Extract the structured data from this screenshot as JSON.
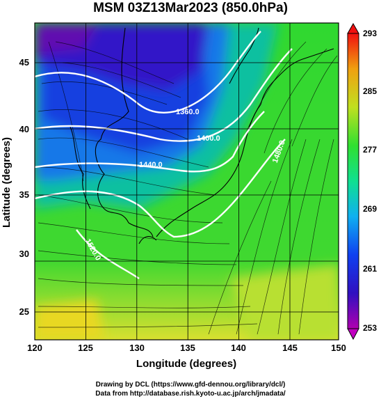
{
  "title": "MSM 03Z13Mar2023 (850.0hPa)",
  "x_axis": {
    "label": "Longitude (degrees)",
    "ticks": [
      "120",
      "125",
      "130",
      "135",
      "140",
      "145",
      "150"
    ]
  },
  "y_axis": {
    "label": "Latitude  (degrees)",
    "ticks": [
      "25",
      "30",
      "35",
      "40",
      "45"
    ]
  },
  "colorbar": {
    "ticks": [
      "253",
      "261",
      "269",
      "277",
      "285",
      "293"
    ]
  },
  "contours": [
    "1360.0",
    "1400.0",
    "1440.0",
    "1480.0",
    "1520.0"
  ],
  "footer": {
    "line1": "Drawing by DCL (https://www.gfd-dennou.org/library/dcl/)",
    "line2": "Data from http://database.rish.kyoto-u.ac.jp/arch/jmadata/"
  },
  "colors": {
    "cold": "#5a10b0",
    "blue": "#2040e0",
    "green": "#30d830",
    "yellow": "#e8e020",
    "contour": "#ffffff",
    "coast": "#000000"
  }
}
